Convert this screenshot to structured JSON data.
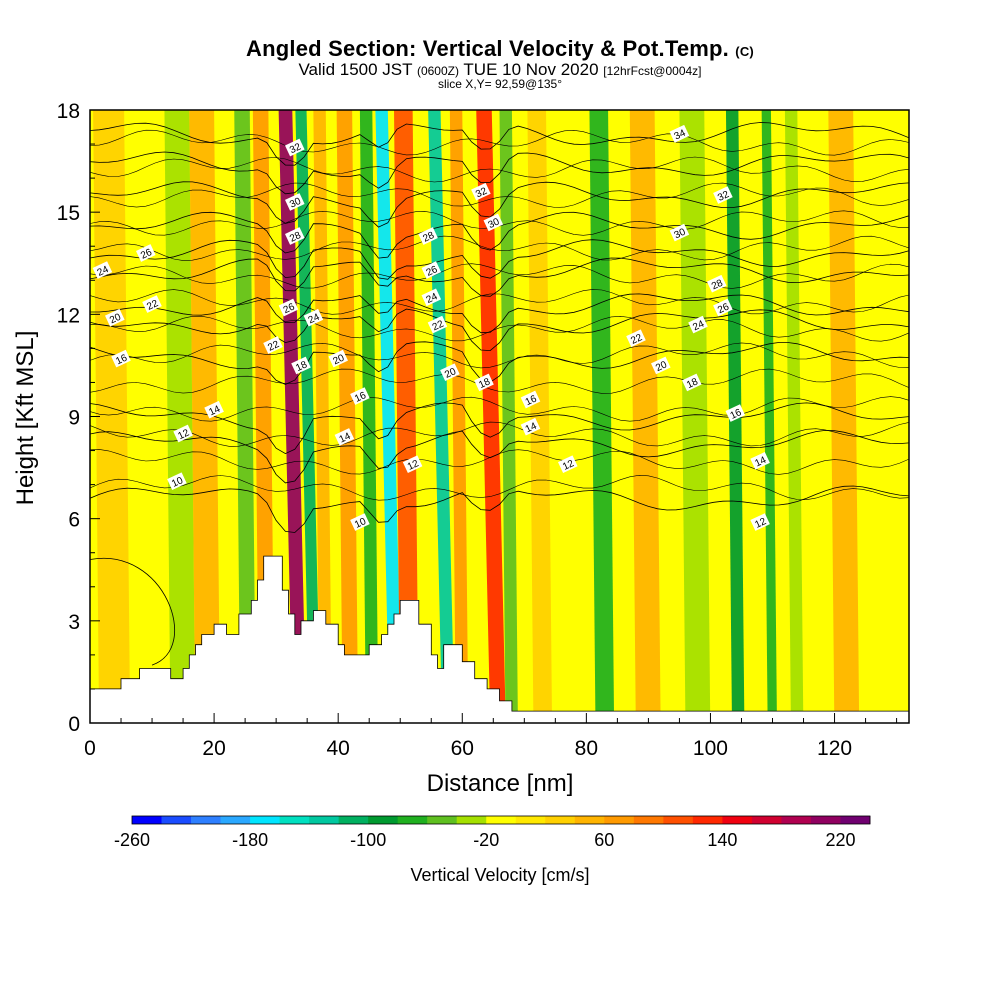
{
  "header": {
    "title": "Angled Section: Vertical Velocity & Pot.Temp.",
    "title_suffix": "(C)",
    "valid_prefix": "Valid 1500 JST",
    "valid_utc": "(0600Z)",
    "valid_date": "TUE 10 Nov 2020",
    "forecast": "[12hrFcst@0004z]",
    "slice": "slice X,Y= 92,59@135°"
  },
  "chart_data": {
    "type": "heatmap",
    "xlabel": "Distance [nm]",
    "ylabel": "Height [Kft MSL]",
    "xlim": [
      0,
      132
    ],
    "ylim": [
      0,
      18
    ],
    "x_ticks": [
      0,
      20,
      40,
      60,
      80,
      100,
      120
    ],
    "y_ticks": [
      0,
      3,
      6,
      9,
      12,
      15,
      18
    ],
    "colorbar": {
      "label": "Vertical Velocity [cm/s]",
      "tick_labels": [
        -260,
        -180,
        -100,
        -20,
        60,
        140,
        220
      ],
      "bins": [
        -260,
        -240,
        -220,
        -200,
        -180,
        -160,
        -140,
        -120,
        -100,
        -80,
        -60,
        -40,
        -20,
        0,
        20,
        40,
        60,
        80,
        100,
        120,
        140,
        160,
        180,
        200,
        220,
        240
      ],
      "colors": [
        "#0000ff",
        "#1a4cff",
        "#2e7fff",
        "#2aa8ff",
        "#00e5ff",
        "#00e0c0",
        "#00c8a0",
        "#00b060",
        "#009a30",
        "#20b020",
        "#5fc020",
        "#a4e000",
        "#ffff00",
        "#ffe800",
        "#ffd000",
        "#ffb400",
        "#ff9a00",
        "#ff7800",
        "#ff5000",
        "#ff2800",
        "#f00010",
        "#d00030",
        "#b00050",
        "#900060",
        "#700070"
      ]
    },
    "velocity_bands": [
      {
        "x": 3,
        "w": 5,
        "value": 25
      },
      {
        "x": 14,
        "w": 4,
        "value": -30
      },
      {
        "x": 18,
        "w": 4,
        "value": 50
      },
      {
        "x": 24.5,
        "w": 2.5,
        "value": -60
      },
      {
        "x": 27.5,
        "w": 2.5,
        "value": 70
      },
      {
        "x": 31.5,
        "w": 2.2,
        "value": 200
      },
      {
        "x": 34,
        "w": 1.8,
        "value": -110
      },
      {
        "x": 37,
        "w": 2,
        "value": 40
      },
      {
        "x": 41,
        "w": 2.5,
        "value": 70
      },
      {
        "x": 44.5,
        "w": 2,
        "value": -70
      },
      {
        "x": 47,
        "w": 2,
        "value": -180
      },
      {
        "x": 50.5,
        "w": 3,
        "value": 100
      },
      {
        "x": 55.5,
        "w": 2,
        "value": -130
      },
      {
        "x": 59,
        "w": 2,
        "value": 60
      },
      {
        "x": 63.5,
        "w": 2.5,
        "value": 130
      },
      {
        "x": 67,
        "w": 2,
        "value": -50
      },
      {
        "x": 72,
        "w": 3,
        "value": 20
      },
      {
        "x": 82,
        "w": 3,
        "value": -80
      },
      {
        "x": 89,
        "w": 4,
        "value": 40
      },
      {
        "x": 97,
        "w": 4,
        "value": -25
      },
      {
        "x": 103.5,
        "w": 2,
        "value": -90
      },
      {
        "x": 109,
        "w": 1.5,
        "value": -80
      },
      {
        "x": 113,
        "w": 2,
        "value": -40
      },
      {
        "x": 121,
        "w": 4,
        "value": 40
      }
    ],
    "terrain": [
      [
        0,
        1
      ],
      [
        5,
        1
      ],
      [
        5,
        1.3
      ],
      [
        8,
        1.3
      ],
      [
        8,
        1.6
      ],
      [
        13,
        1.6
      ],
      [
        13,
        1.3
      ],
      [
        15,
        1.3
      ],
      [
        15,
        1.6
      ],
      [
        16,
        1.6
      ],
      [
        16,
        2
      ],
      [
        17,
        2
      ],
      [
        17,
        2.3
      ],
      [
        18,
        2.3
      ],
      [
        18,
        2.6
      ],
      [
        20,
        2.6
      ],
      [
        20,
        2.9
      ],
      [
        22,
        2.9
      ],
      [
        22,
        2.6
      ],
      [
        24,
        2.6
      ],
      [
        24,
        3.2
      ],
      [
        26,
        3.2
      ],
      [
        26,
        3.6
      ],
      [
        27,
        3.6
      ],
      [
        27,
        4.2
      ],
      [
        28,
        4.2
      ],
      [
        28,
        4.9
      ],
      [
        31,
        4.9
      ],
      [
        31,
        3.9
      ],
      [
        32,
        3.9
      ],
      [
        32,
        3.2
      ],
      [
        33,
        3.2
      ],
      [
        33,
        2.6
      ],
      [
        34,
        2.6
      ],
      [
        34,
        3
      ],
      [
        36,
        3
      ],
      [
        36,
        3.3
      ],
      [
        38,
        3.3
      ],
      [
        38,
        2.9
      ],
      [
        40,
        2.9
      ],
      [
        40,
        2.3
      ],
      [
        41,
        2.3
      ],
      [
        41,
        2
      ],
      [
        45,
        2
      ],
      [
        45,
        2.3
      ],
      [
        47,
        2.3
      ],
      [
        47,
        2.6
      ],
      [
        48,
        2.6
      ],
      [
        48,
        2.9
      ],
      [
        49,
        2.9
      ],
      [
        49,
        3.2
      ],
      [
        50,
        3.2
      ],
      [
        50,
        3.6
      ],
      [
        53,
        3.6
      ],
      [
        53,
        2.9
      ],
      [
        55,
        2.9
      ],
      [
        55,
        2
      ],
      [
        56,
        2
      ],
      [
        56,
        1.6
      ],
      [
        57,
        1.6
      ],
      [
        57,
        2.3
      ],
      [
        60,
        2.3
      ],
      [
        60,
        1.8
      ],
      [
        62,
        1.8
      ],
      [
        62,
        1.3
      ],
      [
        64,
        1.3
      ],
      [
        64,
        1
      ],
      [
        66,
        1
      ],
      [
        66,
        0.65
      ],
      [
        68,
        0.65
      ],
      [
        68,
        0.35
      ],
      [
        132,
        0.35
      ],
      [
        132,
        0
      ]
    ],
    "theta_contours": [
      {
        "label": "10",
        "y0": 6.6,
        "lx": 14,
        "ly": 7.1
      },
      {
        "label": "12",
        "y0": 8.2,
        "lx": 15,
        "ly": 8.5
      },
      {
        "label": "14",
        "y0": 9.0,
        "lx": 20,
        "ly": 9.2
      },
      {
        "label": "16",
        "y0": 10.8,
        "lx": 5,
        "ly": 10.7
      },
      {
        "label": "20",
        "y0": 11.8,
        "lx": 4,
        "ly": 11.9
      },
      {
        "label": "22",
        "y0": 12.3,
        "lx": 10,
        "ly": 12.3
      },
      {
        "label": "24",
        "y0": 13.3,
        "lx": 2,
        "ly": 13.3
      },
      {
        "label": "26",
        "y0": 13.8,
        "lx": 9,
        "ly": 13.8
      },
      {
        "label": "28",
        "y0": 14.6,
        "lx": 0,
        "ly": 0
      },
      {
        "label": "30",
        "y0": 15.5,
        "lx": 0,
        "ly": 0
      },
      {
        "label": "32",
        "y0": 16.4,
        "lx": 0,
        "ly": 0
      },
      {
        "label": "34",
        "y0": 17.3,
        "lx": 95,
        "ly": 17.3
      }
    ],
    "inline_labels": [
      {
        "label": "32",
        "x": 33,
        "y": 16.9
      },
      {
        "label": "30",
        "x": 33,
        "y": 15.3
      },
      {
        "label": "28",
        "x": 33,
        "y": 14.3
      },
      {
        "label": "26",
        "x": 32,
        "y": 12.2
      },
      {
        "label": "22",
        "x": 29.5,
        "y": 11.1
      },
      {
        "label": "24",
        "x": 36,
        "y": 11.9
      },
      {
        "label": "18",
        "x": 34,
        "y": 10.5
      },
      {
        "label": "20",
        "x": 40,
        "y": 10.7
      },
      {
        "label": "16",
        "x": 43.5,
        "y": 9.6
      },
      {
        "label": "14",
        "x": 41,
        "y": 8.4
      },
      {
        "label": "10",
        "x": 43.5,
        "y": 5.9
      },
      {
        "label": "12",
        "x": 52,
        "y": 7.6
      },
      {
        "label": "28",
        "x": 54.5,
        "y": 14.3
      },
      {
        "label": "26",
        "x": 55,
        "y": 13.3
      },
      {
        "label": "24",
        "x": 55,
        "y": 12.5
      },
      {
        "label": "22",
        "x": 56,
        "y": 11.7
      },
      {
        "label": "20",
        "x": 58,
        "y": 10.3
      },
      {
        "label": "32",
        "x": 63,
        "y": 15.6
      },
      {
        "label": "30",
        "x": 65,
        "y": 14.7
      },
      {
        "label": "18",
        "x": 63.5,
        "y": 10.0
      },
      {
        "label": "16",
        "x": 71,
        "y": 9.5
      },
      {
        "label": "14",
        "x": 71,
        "y": 8.7
      },
      {
        "label": "12",
        "x": 77,
        "y": 7.6
      },
      {
        "label": "34",
        "x": 95,
        "y": 17.3
      },
      {
        "label": "32",
        "x": 102,
        "y": 15.5
      },
      {
        "label": "30",
        "x": 95,
        "y": 14.4
      },
      {
        "label": "28",
        "x": 101,
        "y": 12.9
      },
      {
        "label": "26",
        "x": 102,
        "y": 12.2
      },
      {
        "label": "24",
        "x": 98,
        "y": 11.7
      },
      {
        "label": "22",
        "x": 88,
        "y": 11.3
      },
      {
        "label": "20",
        "x": 92,
        "y": 10.5
      },
      {
        "label": "18",
        "x": 97,
        "y": 10.0
      },
      {
        "label": "16",
        "x": 104,
        "y": 9.1
      },
      {
        "label": "14",
        "x": 108,
        "y": 7.7
      },
      {
        "label": "12",
        "x": 108,
        "y": 5.9
      }
    ]
  }
}
